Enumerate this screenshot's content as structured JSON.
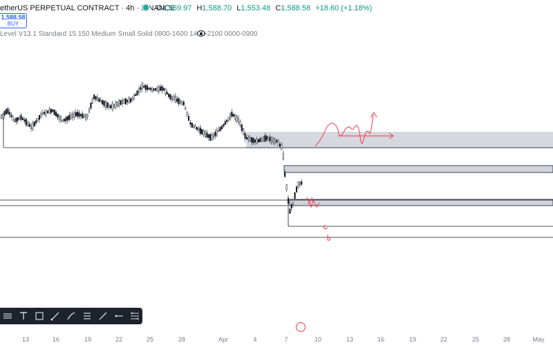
{
  "header": {
    "symbol_title": "etherUS PERPETUAL CONTRACT · 4h · BINANCE",
    "ohlc": [
      {
        "key": "O",
        "value": "1,569.97"
      },
      {
        "key": "H",
        "value": "1,588.70"
      },
      {
        "key": "L",
        "value": "1,553.48"
      },
      {
        "key": "C",
        "value": "1,588.58"
      }
    ],
    "change": "+18.60 (+1.18%)"
  },
  "price_box": {
    "price": "1,588.58",
    "action": "BUY"
  },
  "indicator": {
    "label": "Level V13.1 Standard 15 150 Medium Small Solid 0800-1600 1400-2100 0000-0900"
  },
  "toolbar": {
    "tools": [
      "long-position-icon",
      "text-tool-icon",
      "rectangle-icon",
      "brush-icon",
      "pen-icon",
      "price-range-icon",
      "trendline-icon",
      "horizontal-ray-icon",
      "fib-retracement-icon"
    ]
  },
  "x_axis": {
    "labels": [
      "13",
      "16",
      "19",
      "22",
      "25",
      "28",
      "Apr",
      "4",
      "7",
      "10",
      "13",
      "16",
      "19",
      "22",
      "25",
      "28",
      "May"
    ]
  },
  "colors": {
    "candle": "#131722",
    "zone": "#d1d4dc",
    "annotation": "#f23645",
    "accent": "#2962ff",
    "up": "#089981"
  }
}
